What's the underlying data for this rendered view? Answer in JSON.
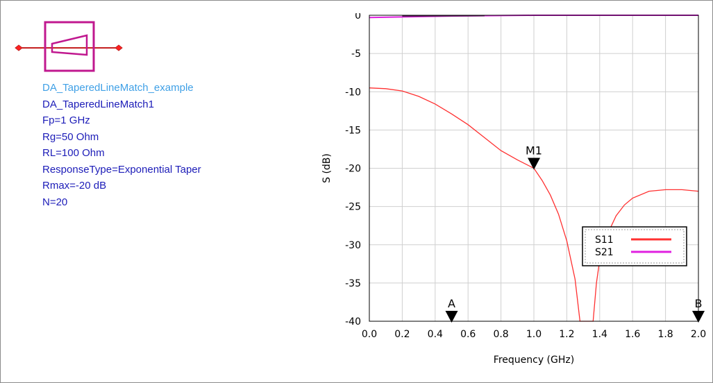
{
  "component": {
    "instance_name": "DA_TaperedLineMatch_example",
    "params": [
      "DA_TaperedLineMatch1",
      "Fp=1 GHz",
      "Rg=50 Ohm",
      "RL=100 Ohm",
      "ResponseType=Exponential Taper",
      "Rmax=-20 dB",
      "N=20"
    ],
    "symbol_icon": "tapered-line-symbol-icon",
    "colors": {
      "instance": "#3fa0e6",
      "params": "#1c1cb8",
      "symbol": "#c0188f",
      "wire": "#c42020"
    }
  },
  "chart_data": {
    "type": "line",
    "xlabel": "Frequency (GHz)",
    "ylabel": "S (dB)",
    "xlim": [
      0,
      2
    ],
    "ylim": [
      -40,
      0
    ],
    "xticks": [
      "0.0",
      "0.2",
      "0.4",
      "0.6",
      "0.8",
      "1.0",
      "1.2",
      "1.4",
      "1.6",
      "1.8",
      "2.0"
    ],
    "yticks": [
      "0",
      "-5",
      "-10",
      "-15",
      "-20",
      "-25",
      "-30",
      "-35",
      "-40"
    ],
    "grid": true,
    "legend_position": "right",
    "series": [
      {
        "name": "S11",
        "color": "#ff3030",
        "x": [
          0.0,
          0.1,
          0.2,
          0.3,
          0.4,
          0.5,
          0.6,
          0.7,
          0.8,
          0.9,
          1.0,
          1.05,
          1.1,
          1.15,
          1.2,
          1.25,
          1.28,
          1.3,
          1.33,
          1.36,
          1.38,
          1.4,
          1.45,
          1.5,
          1.55,
          1.6,
          1.7,
          1.8,
          1.9,
          2.0
        ],
        "y": [
          -9.5,
          -9.6,
          -9.9,
          -10.6,
          -11.6,
          -12.9,
          -14.3,
          -16.0,
          -17.7,
          -18.9,
          -20.0,
          -21.6,
          -23.5,
          -26.0,
          -29.5,
          -34.5,
          -40.0,
          -40.0,
          -40.0,
          -40.0,
          -35.0,
          -32.0,
          -28.5,
          -26.2,
          -24.8,
          -23.9,
          -23.0,
          -22.8,
          -22.8,
          -23.0
        ]
      },
      {
        "name": "S21",
        "color": "#e020e0",
        "x": [
          0.0,
          0.5,
          1.0,
          1.5,
          2.0
        ],
        "y": [
          -0.3,
          -0.1,
          0.0,
          0.0,
          0.0
        ]
      }
    ],
    "markers": [
      {
        "label": "M1",
        "x": 1.0,
        "y": -20.0
      },
      {
        "label": "A",
        "x": 0.5,
        "y": -40.0
      },
      {
        "label": "B",
        "x": 2.0,
        "y": -40.0
      }
    ]
  }
}
